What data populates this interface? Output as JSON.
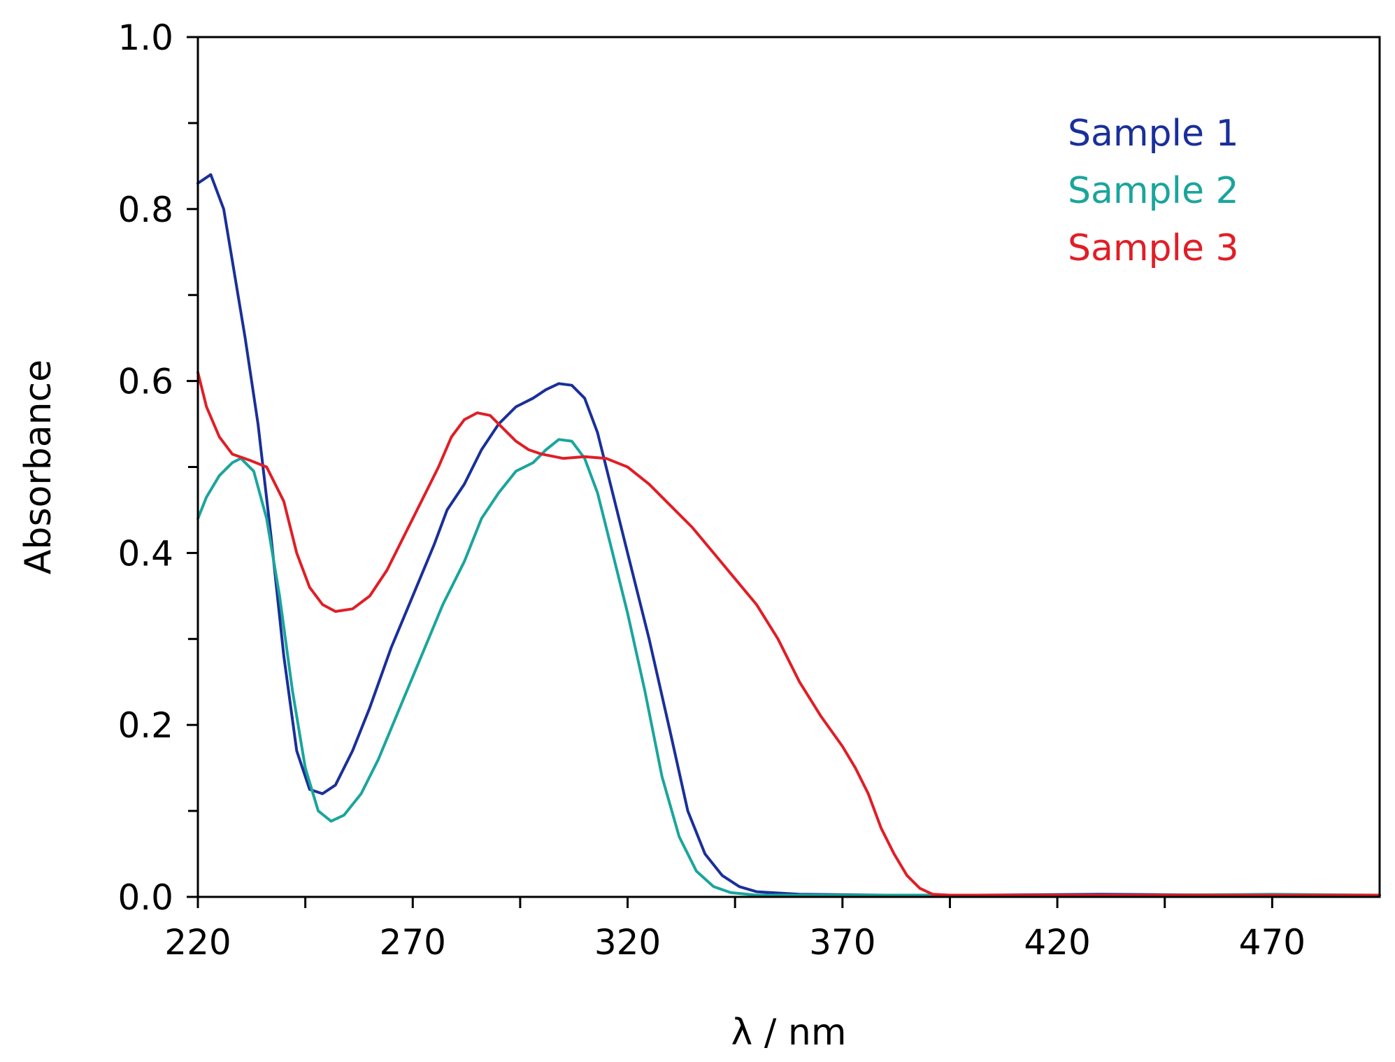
{
  "chart_data": {
    "type": "line",
    "title": "",
    "xlabel": "λ / nm",
    "ylabel": "Absorbance",
    "xlim": [
      220,
      495
    ],
    "ylim": [
      0,
      1.0
    ],
    "x_ticks": [
      220,
      270,
      320,
      370,
      420,
      470
    ],
    "x_tick_labels": [
      "220",
      "270",
      "320",
      "370",
      "420",
      "470"
    ],
    "y_ticks": [
      0,
      0.2,
      0.4,
      0.6,
      0.8,
      1.0
    ],
    "y_tick_labels": [
      "0.0",
      "0.2",
      "0.4",
      "0.6",
      "0.8",
      "1.0"
    ],
    "grid": false,
    "legend_position": "top-right",
    "series": [
      {
        "name": "Sample 1",
        "color": "#1a2f9a",
        "points": [
          [
            220,
            0.83
          ],
          [
            223,
            0.84
          ],
          [
            226,
            0.8
          ],
          [
            228,
            0.74
          ],
          [
            231,
            0.65
          ],
          [
            234,
            0.55
          ],
          [
            237,
            0.42
          ],
          [
            240,
            0.28
          ],
          [
            243,
            0.17
          ],
          [
            246,
            0.125
          ],
          [
            249,
            0.12
          ],
          [
            252,
            0.13
          ],
          [
            256,
            0.17
          ],
          [
            260,
            0.22
          ],
          [
            265,
            0.29
          ],
          [
            270,
            0.35
          ],
          [
            275,
            0.41
          ],
          [
            278,
            0.45
          ],
          [
            282,
            0.48
          ],
          [
            286,
            0.52
          ],
          [
            290,
            0.55
          ],
          [
            294,
            0.57
          ],
          [
            298,
            0.58
          ],
          [
            301,
            0.59
          ],
          [
            304,
            0.597
          ],
          [
            307,
            0.595
          ],
          [
            310,
            0.58
          ],
          [
            313,
            0.54
          ],
          [
            316,
            0.48
          ],
          [
            320,
            0.4
          ],
          [
            325,
            0.3
          ],
          [
            330,
            0.19
          ],
          [
            334,
            0.1
          ],
          [
            338,
            0.05
          ],
          [
            342,
            0.025
          ],
          [
            346,
            0.012
          ],
          [
            350,
            0.006
          ],
          [
            360,
            0.003
          ],
          [
            380,
            0.002
          ],
          [
            400,
            0.002
          ],
          [
            430,
            0.003
          ],
          [
            460,
            0.002
          ],
          [
            495,
            0.002
          ]
        ]
      },
      {
        "name": "Sample 2",
        "color": "#1aa59c",
        "points": [
          [
            220,
            0.44
          ],
          [
            222,
            0.465
          ],
          [
            225,
            0.49
          ],
          [
            228,
            0.505
          ],
          [
            230,
            0.51
          ],
          [
            233,
            0.495
          ],
          [
            236,
            0.44
          ],
          [
            239,
            0.35
          ],
          [
            242,
            0.24
          ],
          [
            245,
            0.15
          ],
          [
            248,
            0.1
          ],
          [
            251,
            0.088
          ],
          [
            254,
            0.095
          ],
          [
            258,
            0.12
          ],
          [
            262,
            0.16
          ],
          [
            267,
            0.22
          ],
          [
            272,
            0.28
          ],
          [
            277,
            0.34
          ],
          [
            282,
            0.39
          ],
          [
            286,
            0.44
          ],
          [
            290,
            0.47
          ],
          [
            294,
            0.495
          ],
          [
            298,
            0.505
          ],
          [
            301,
            0.52
          ],
          [
            304,
            0.532
          ],
          [
            307,
            0.53
          ],
          [
            310,
            0.51
          ],
          [
            313,
            0.47
          ],
          [
            316,
            0.41
          ],
          [
            320,
            0.33
          ],
          [
            324,
            0.24
          ],
          [
            328,
            0.14
          ],
          [
            332,
            0.07
          ],
          [
            336,
            0.03
          ],
          [
            340,
            0.012
          ],
          [
            344,
            0.005
          ],
          [
            350,
            0.002
          ],
          [
            370,
            0.002
          ],
          [
            400,
            0.002
          ],
          [
            440,
            0.002
          ],
          [
            470,
            0.003
          ],
          [
            495,
            0.002
          ]
        ]
      },
      {
        "name": "Sample 3",
        "color": "#e01e26",
        "points": [
          [
            220,
            0.61
          ],
          [
            222,
            0.57
          ],
          [
            225,
            0.535
          ],
          [
            228,
            0.515
          ],
          [
            232,
            0.508
          ],
          [
            236,
            0.5
          ],
          [
            240,
            0.46
          ],
          [
            243,
            0.4
          ],
          [
            246,
            0.36
          ],
          [
            249,
            0.34
          ],
          [
            252,
            0.332
          ],
          [
            256,
            0.335
          ],
          [
            260,
            0.35
          ],
          [
            264,
            0.38
          ],
          [
            268,
            0.42
          ],
          [
            272,
            0.46
          ],
          [
            276,
            0.5
          ],
          [
            279,
            0.535
          ],
          [
            282,
            0.555
          ],
          [
            285,
            0.563
          ],
          [
            288,
            0.56
          ],
          [
            291,
            0.545
          ],
          [
            294,
            0.53
          ],
          [
            297,
            0.52
          ],
          [
            300,
            0.515
          ],
          [
            305,
            0.51
          ],
          [
            310,
            0.512
          ],
          [
            315,
            0.51
          ],
          [
            320,
            0.5
          ],
          [
            325,
            0.48
          ],
          [
            330,
            0.455
          ],
          [
            335,
            0.43
          ],
          [
            340,
            0.4
          ],
          [
            345,
            0.37
          ],
          [
            350,
            0.34
          ],
          [
            355,
            0.3
          ],
          [
            360,
            0.25
          ],
          [
            365,
            0.21
          ],
          [
            370,
            0.175
          ],
          [
            373,
            0.15
          ],
          [
            376,
            0.12
          ],
          [
            379,
            0.08
          ],
          [
            382,
            0.05
          ],
          [
            385,
            0.025
          ],
          [
            388,
            0.01
          ],
          [
            391,
            0.003
          ],
          [
            395,
            0.002
          ],
          [
            420,
            0.002
          ],
          [
            460,
            0.002
          ],
          [
            495,
            0.002
          ]
        ]
      }
    ]
  }
}
